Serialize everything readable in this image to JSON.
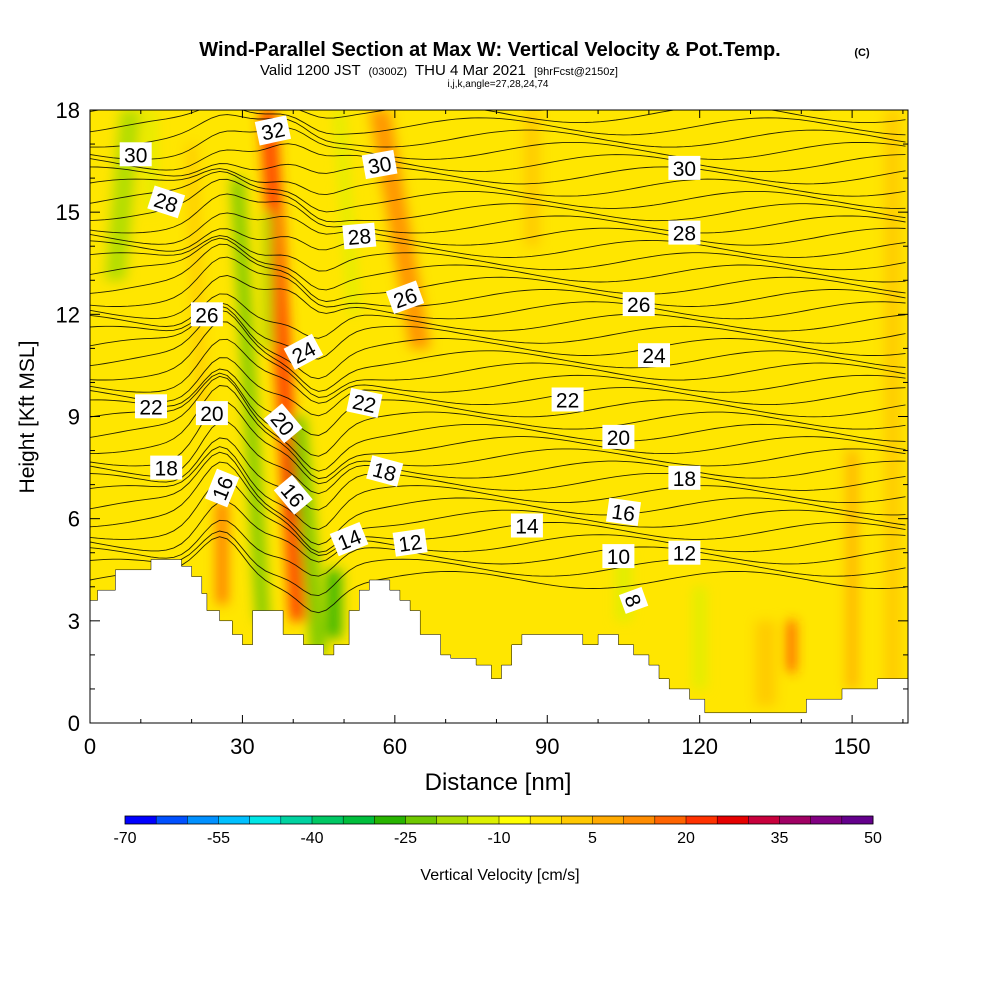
{
  "chart_data": {
    "type": "heatmap",
    "title": "Wind-Parallel Section at Max W: Vertical Velocity & Pot.Temp.",
    "title_unit": "(C)",
    "subtitle": {
      "valid_prefix": "Valid 1200 JST",
      "utc": "(0300Z)",
      "date": "THU 4 Mar 2021",
      "forecast": "[9hrFcst@2150z]"
    },
    "indices": "i,j,k,angle=27,28,24,74",
    "xlabel": "Distance [nm]",
    "ylabel": "Height [Kft MSL]",
    "xlim": [
      0,
      161
    ],
    "ylim": [
      0,
      18
    ],
    "x_ticks": [
      0,
      30,
      60,
      90,
      120,
      150
    ],
    "y_ticks": [
      0,
      3,
      6,
      9,
      12,
      15,
      18
    ],
    "background_color": "#ffe600",
    "colorbar": {
      "label": "Vertical Velocity [cm/s]",
      "tick_labels": [
        "-70",
        "-55",
        "-40",
        "-25",
        "-10",
        "5",
        "20",
        "35",
        "50"
      ],
      "colors": [
        "#0000ff",
        "#0050ff",
        "#0090ff",
        "#00c0ff",
        "#00e6e6",
        "#00d2a0",
        "#00c864",
        "#00be3c",
        "#28b400",
        "#6ec800",
        "#aadc00",
        "#dcf000",
        "#ffff00",
        "#ffe600",
        "#ffc800",
        "#ffaa00",
        "#ff8c00",
        "#ff6400",
        "#ff3200",
        "#e60000",
        "#c8003c",
        "#a00064",
        "#820082",
        "#64008c"
      ]
    },
    "velocity_features": [
      {
        "x": 41,
        "y_bottom": 3,
        "y_top": 18,
        "lean": -6,
        "width": 3.2,
        "color": "#ff3200"
      },
      {
        "x": 40,
        "y_bottom": 6,
        "y_top": 8,
        "lean": 0,
        "width": 2.2,
        "color": "#e60000"
      },
      {
        "x": 34,
        "y_bottom": 3,
        "y_top": 16,
        "lean": -5,
        "width": 2.5,
        "color": "#6ec800"
      },
      {
        "x": 45,
        "y_bottom": 2,
        "y_top": 9,
        "lean": -4,
        "width": 3,
        "color": "#6ec800"
      },
      {
        "x": 48,
        "y_bottom": 2.5,
        "y_top": 4.5,
        "lean": 0,
        "width": 3,
        "color": "#28b400"
      },
      {
        "x": 65,
        "y_bottom": 11,
        "y_top": 18,
        "lean": -8,
        "width": 4,
        "color": "#ff8c00"
      },
      {
        "x": 26,
        "y_bottom": 3.5,
        "y_top": 6.5,
        "lean": 0,
        "width": 2,
        "color": "#ff6400"
      },
      {
        "x": 5,
        "y_bottom": 13,
        "y_top": 18,
        "lean": 3,
        "width": 4,
        "color": "#aadc00"
      },
      {
        "x": 12,
        "y_bottom": 15,
        "y_top": 18,
        "lean": 0,
        "width": 2,
        "color": "#dcf000"
      },
      {
        "x": 22,
        "y_bottom": 9,
        "y_top": 17,
        "lean": -2,
        "width": 2,
        "color": "#ffc800"
      },
      {
        "x": 35,
        "y_bottom": 11,
        "y_top": 15,
        "lean": 0,
        "width": 2,
        "color": "#aadc00"
      },
      {
        "x": 52,
        "y_bottom": 12,
        "y_top": 18,
        "lean": -3,
        "width": 2,
        "color": "#dcf000"
      },
      {
        "x": 87,
        "y_bottom": 14,
        "y_top": 18,
        "lean": 0,
        "width": 3,
        "color": "#ffc800"
      },
      {
        "x": 105,
        "y_bottom": 3,
        "y_top": 5,
        "lean": 0,
        "width": 3,
        "color": "#dcf000"
      },
      {
        "x": 120,
        "y_bottom": 1,
        "y_top": 4,
        "lean": 0,
        "width": 2.5,
        "color": "#dcf000"
      },
      {
        "x": 133,
        "y_bottom": 0.5,
        "y_top": 3,
        "lean": 0,
        "width": 4,
        "color": "#ffc800"
      },
      {
        "x": 138,
        "y_bottom": 1.5,
        "y_top": 3,
        "lean": 0,
        "width": 1.5,
        "color": "#ff3200"
      },
      {
        "x": 150,
        "y_bottom": 1,
        "y_top": 8,
        "lean": 0,
        "width": 2,
        "color": "#ffaa00"
      },
      {
        "x": 158,
        "y_bottom": 1,
        "y_top": 18,
        "lean": 0,
        "width": 3,
        "color": "#ffc800"
      }
    ],
    "terrain": [
      [
        0,
        3.6
      ],
      [
        1.5,
        3.6
      ],
      [
        1.5,
        3.9
      ],
      [
        5,
        3.9
      ],
      [
        5,
        4.5
      ],
      [
        12,
        4.5
      ],
      [
        12,
        4.8
      ],
      [
        18,
        4.8
      ],
      [
        18,
        4.6
      ],
      [
        20,
        4.6
      ],
      [
        20,
        4.3
      ],
      [
        22,
        4.3
      ],
      [
        22,
        3.8
      ],
      [
        23,
        3.8
      ],
      [
        23,
        3.3
      ],
      [
        25.5,
        3.3
      ],
      [
        25.5,
        3.0
      ],
      [
        28,
        3.0
      ],
      [
        28,
        2.6
      ],
      [
        30,
        2.6
      ],
      [
        30,
        2.3
      ],
      [
        32,
        2.3
      ],
      [
        32,
        3.3
      ],
      [
        38,
        3.3
      ],
      [
        38,
        2.6
      ],
      [
        42,
        2.6
      ],
      [
        42,
        2.3
      ],
      [
        46,
        2.3
      ],
      [
        46,
        2.0
      ],
      [
        48,
        2.0
      ],
      [
        48,
        2.3
      ],
      [
        51,
        2.3
      ],
      [
        51,
        3.3
      ],
      [
        53,
        3.3
      ],
      [
        53,
        3.9
      ],
      [
        55,
        3.9
      ],
      [
        55,
        4.2
      ],
      [
        59,
        4.2
      ],
      [
        59,
        3.9
      ],
      [
        61,
        3.9
      ],
      [
        61,
        3.6
      ],
      [
        63,
        3.6
      ],
      [
        63,
        3.3
      ],
      [
        65,
        3.3
      ],
      [
        65,
        2.6
      ],
      [
        69,
        2.6
      ],
      [
        69,
        2.0
      ],
      [
        71,
        2.0
      ],
      [
        71,
        1.9
      ],
      [
        76,
        1.9
      ],
      [
        76,
        1.7
      ],
      [
        79,
        1.7
      ],
      [
        79,
        1.3
      ],
      [
        81,
        1.3
      ],
      [
        81,
        1.7
      ],
      [
        83,
        1.7
      ],
      [
        83,
        2.3
      ],
      [
        85,
        2.3
      ],
      [
        85,
        2.6
      ],
      [
        97,
        2.6
      ],
      [
        97,
        2.3
      ],
      [
        100,
        2.3
      ],
      [
        100,
        2.6
      ],
      [
        104,
        2.6
      ],
      [
        104,
        2.3
      ],
      [
        107,
        2.3
      ],
      [
        107,
        2.0
      ],
      [
        110,
        2.0
      ],
      [
        110,
        1.7
      ],
      [
        112,
        1.7
      ],
      [
        112,
        1.3
      ],
      [
        114,
        1.3
      ],
      [
        114,
        1.0
      ],
      [
        118,
        1.0
      ],
      [
        118,
        0.7
      ],
      [
        121,
        0.7
      ],
      [
        121,
        0.3
      ],
      [
        141,
        0.3
      ],
      [
        141,
        0.7
      ],
      [
        148,
        0.7
      ],
      [
        148,
        1.0
      ],
      [
        155,
        1.0
      ],
      [
        155,
        1.3
      ],
      [
        161,
        1.3
      ],
      [
        161,
        0
      ],
      [
        0,
        0
      ]
    ],
    "contour_labels": [
      {
        "text": "30",
        "x": 9,
        "y": 16.7,
        "rot": 0
      },
      {
        "text": "28",
        "x": 15,
        "y": 15.3,
        "rot": 18
      },
      {
        "text": "32",
        "x": 36,
        "y": 17.4,
        "rot": -12
      },
      {
        "text": "30",
        "x": 57,
        "y": 16.4,
        "rot": -10
      },
      {
        "text": "30",
        "x": 117,
        "y": 16.3,
        "rot": 0
      },
      {
        "text": "28",
        "x": 53,
        "y": 14.3,
        "rot": -5
      },
      {
        "text": "28",
        "x": 117,
        "y": 14.4,
        "rot": 0
      },
      {
        "text": "26",
        "x": 23,
        "y": 12.0,
        "rot": 0
      },
      {
        "text": "26",
        "x": 62,
        "y": 12.5,
        "rot": -20
      },
      {
        "text": "26",
        "x": 108,
        "y": 12.3,
        "rot": 0
      },
      {
        "text": "24",
        "x": 42,
        "y": 10.9,
        "rot": -28
      },
      {
        "text": "24",
        "x": 111,
        "y": 10.8,
        "rot": 0
      },
      {
        "text": "22",
        "x": 12,
        "y": 9.3,
        "rot": 0
      },
      {
        "text": "22",
        "x": 54,
        "y": 9.4,
        "rot": 12
      },
      {
        "text": "22",
        "x": 94,
        "y": 9.5,
        "rot": 0
      },
      {
        "text": "20",
        "x": 24,
        "y": 9.1,
        "rot": 0
      },
      {
        "text": "20",
        "x": 38,
        "y": 8.8,
        "rot": 50
      },
      {
        "text": "20",
        "x": 104,
        "y": 8.4,
        "rot": 0
      },
      {
        "text": "18",
        "x": 15,
        "y": 7.5,
        "rot": 0
      },
      {
        "text": "18",
        "x": 58,
        "y": 7.4,
        "rot": 15
      },
      {
        "text": "18",
        "x": 117,
        "y": 7.2,
        "rot": 0
      },
      {
        "text": "16",
        "x": 26,
        "y": 6.9,
        "rot": -68
      },
      {
        "text": "16",
        "x": 40,
        "y": 6.7,
        "rot": 50
      },
      {
        "text": "16",
        "x": 105,
        "y": 6.2,
        "rot": 8
      },
      {
        "text": "14",
        "x": 51,
        "y": 5.4,
        "rot": -22
      },
      {
        "text": "14",
        "x": 86,
        "y": 5.8,
        "rot": 0
      },
      {
        "text": "12",
        "x": 63,
        "y": 5.3,
        "rot": -8
      },
      {
        "text": "12",
        "x": 117,
        "y": 5.0,
        "rot": 0
      },
      {
        "text": "10",
        "x": 104,
        "y": 4.9,
        "rot": 0
      },
      {
        "text": "8",
        "x": 107,
        "y": 3.6,
        "rot": 70
      }
    ]
  }
}
